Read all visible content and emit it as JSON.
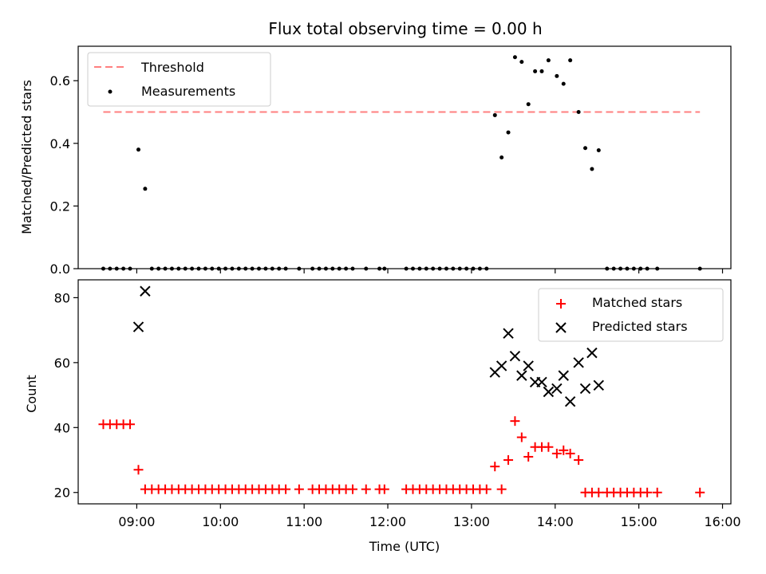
{
  "chart_data": [
    {
      "type": "scatter",
      "title": "Flux total observing time = 0.00 h",
      "xlabel": "",
      "ylabel": "Matched/Predicted stars",
      "ylim": [
        0,
        0.71
      ],
      "yticks": [
        "0.0",
        "0.2",
        "0.4",
        "0.6"
      ],
      "ytick_values": [
        0,
        0.2,
        0.4,
        0.6
      ],
      "xlim_hours": [
        8.3,
        16.1
      ],
      "legend_position": "upper-left",
      "threshold": {
        "name": "Threshold",
        "y": 0.5,
        "x_start": 8.6,
        "x_end": 15.73,
        "color": "#ff7f7f"
      },
      "series": [
        {
          "name": "Measurements",
          "color": "#000000",
          "points": [
            [
              8.6,
              0
            ],
            [
              8.68,
              0
            ],
            [
              8.76,
              0
            ],
            [
              8.84,
              0
            ],
            [
              8.92,
              0
            ],
            [
              9.02,
              0.38
            ],
            [
              9.1,
              0.255
            ],
            [
              9.18,
              0
            ],
            [
              9.26,
              0
            ],
            [
              9.34,
              0
            ],
            [
              9.42,
              0
            ],
            [
              9.5,
              0
            ],
            [
              9.58,
              0
            ],
            [
              9.66,
              0
            ],
            [
              9.74,
              0
            ],
            [
              9.82,
              0
            ],
            [
              9.9,
              0
            ],
            [
              9.98,
              0
            ],
            [
              10.06,
              0
            ],
            [
              10.14,
              0
            ],
            [
              10.22,
              0
            ],
            [
              10.3,
              0
            ],
            [
              10.38,
              0
            ],
            [
              10.46,
              0
            ],
            [
              10.54,
              0
            ],
            [
              10.62,
              0
            ],
            [
              10.7,
              0
            ],
            [
              10.78,
              0
            ],
            [
              10.94,
              0
            ],
            [
              11.1,
              0
            ],
            [
              11.18,
              0
            ],
            [
              11.26,
              0
            ],
            [
              11.34,
              0
            ],
            [
              11.42,
              0
            ],
            [
              11.5,
              0
            ],
            [
              11.58,
              0
            ],
            [
              11.74,
              0
            ],
            [
              11.9,
              0
            ],
            [
              11.96,
              0
            ],
            [
              12.22,
              0
            ],
            [
              12.3,
              0
            ],
            [
              12.38,
              0
            ],
            [
              12.46,
              0
            ],
            [
              12.54,
              0
            ],
            [
              12.62,
              0
            ],
            [
              12.7,
              0
            ],
            [
              12.78,
              0
            ],
            [
              12.86,
              0
            ],
            [
              12.94,
              0
            ],
            [
              13.02,
              0
            ],
            [
              13.1,
              0
            ],
            [
              13.18,
              0
            ],
            [
              13.28,
              0.49
            ],
            [
              13.36,
              0.355
            ],
            [
              13.44,
              0.435
            ],
            [
              13.52,
              0.675
            ],
            [
              13.6,
              0.66
            ],
            [
              13.68,
              0.525
            ],
            [
              13.76,
              0.63
            ],
            [
              13.84,
              0.63
            ],
            [
              13.92,
              0.665
            ],
            [
              14.02,
              0.615
            ],
            [
              14.1,
              0.59
            ],
            [
              14.18,
              0.665
            ],
            [
              14.28,
              0.5
            ],
            [
              14.36,
              0.385
            ],
            [
              14.44,
              0.318
            ],
            [
              14.52,
              0.378
            ],
            [
              14.62,
              0
            ],
            [
              14.7,
              0
            ],
            [
              14.78,
              0
            ],
            [
              14.86,
              0
            ],
            [
              14.94,
              0
            ],
            [
              15.02,
              0
            ],
            [
              15.1,
              0
            ],
            [
              15.22,
              0
            ],
            [
              15.73,
              0
            ]
          ]
        }
      ]
    },
    {
      "type": "scatter",
      "title": "",
      "xlabel": "Time (UTC)",
      "ylabel": "Count",
      "ylim": [
        16.5,
        85.5
      ],
      "yticks": [
        "20",
        "40",
        "60",
        "80"
      ],
      "ytick_values": [
        20,
        40,
        60,
        80
      ],
      "xlim_hours": [
        8.3,
        16.1
      ],
      "xticks": [
        "09:00",
        "10:00",
        "11:00",
        "12:00",
        "13:00",
        "14:00",
        "15:00",
        "16:00"
      ],
      "xtick_values": [
        9,
        10,
        11,
        12,
        13,
        14,
        15,
        16
      ],
      "legend_position": "upper-right",
      "series": [
        {
          "name": "Matched stars",
          "color": "#ff0000",
          "marker": "plus",
          "points": [
            [
              8.6,
              41
            ],
            [
              8.68,
              41
            ],
            [
              8.76,
              41
            ],
            [
              8.84,
              41
            ],
            [
              8.92,
              41
            ],
            [
              9.02,
              27
            ],
            [
              9.1,
              21
            ],
            [
              9.18,
              21
            ],
            [
              9.26,
              21
            ],
            [
              9.34,
              21
            ],
            [
              9.42,
              21
            ],
            [
              9.5,
              21
            ],
            [
              9.58,
              21
            ],
            [
              9.66,
              21
            ],
            [
              9.74,
              21
            ],
            [
              9.82,
              21
            ],
            [
              9.9,
              21
            ],
            [
              9.98,
              21
            ],
            [
              10.06,
              21
            ],
            [
              10.14,
              21
            ],
            [
              10.22,
              21
            ],
            [
              10.3,
              21
            ],
            [
              10.38,
              21
            ],
            [
              10.46,
              21
            ],
            [
              10.54,
              21
            ],
            [
              10.62,
              21
            ],
            [
              10.7,
              21
            ],
            [
              10.78,
              21
            ],
            [
              10.94,
              21
            ],
            [
              11.1,
              21
            ],
            [
              11.18,
              21
            ],
            [
              11.26,
              21
            ],
            [
              11.34,
              21
            ],
            [
              11.42,
              21
            ],
            [
              11.5,
              21
            ],
            [
              11.58,
              21
            ],
            [
              11.74,
              21
            ],
            [
              11.9,
              21
            ],
            [
              11.96,
              21
            ],
            [
              12.22,
              21
            ],
            [
              12.3,
              21
            ],
            [
              12.38,
              21
            ],
            [
              12.46,
              21
            ],
            [
              12.54,
              21
            ],
            [
              12.62,
              21
            ],
            [
              12.7,
              21
            ],
            [
              12.78,
              21
            ],
            [
              12.86,
              21
            ],
            [
              12.94,
              21
            ],
            [
              13.02,
              21
            ],
            [
              13.1,
              21
            ],
            [
              13.18,
              21
            ],
            [
              13.28,
              28
            ],
            [
              13.36,
              21
            ],
            [
              13.44,
              30
            ],
            [
              13.52,
              42
            ],
            [
              13.6,
              37
            ],
            [
              13.68,
              31
            ],
            [
              13.76,
              34
            ],
            [
              13.84,
              34
            ],
            [
              13.92,
              34
            ],
            [
              14.02,
              32
            ],
            [
              14.1,
              33
            ],
            [
              14.18,
              32
            ],
            [
              14.28,
              30
            ],
            [
              14.36,
              20
            ],
            [
              14.44,
              20
            ],
            [
              14.52,
              20
            ],
            [
              14.62,
              20
            ],
            [
              14.7,
              20
            ],
            [
              14.78,
              20
            ],
            [
              14.86,
              20
            ],
            [
              14.94,
              20
            ],
            [
              15.02,
              20
            ],
            [
              15.1,
              20
            ],
            [
              15.22,
              20
            ],
            [
              15.73,
              20
            ]
          ]
        },
        {
          "name": "Predicted stars",
          "color": "#000000",
          "marker": "x",
          "points": [
            [
              9.02,
              71
            ],
            [
              9.1,
              82
            ],
            [
              13.28,
              57
            ],
            [
              13.36,
              59
            ],
            [
              13.44,
              69
            ],
            [
              13.52,
              62
            ],
            [
              13.6,
              56
            ],
            [
              13.68,
              59
            ],
            [
              13.76,
              54
            ],
            [
              13.84,
              54
            ],
            [
              13.92,
              51
            ],
            [
              14.02,
              52
            ],
            [
              14.1,
              56
            ],
            [
              14.18,
              48
            ],
            [
              14.28,
              60
            ],
            [
              14.36,
              52
            ],
            [
              14.44,
              63
            ],
            [
              14.52,
              53
            ]
          ]
        }
      ]
    }
  ]
}
